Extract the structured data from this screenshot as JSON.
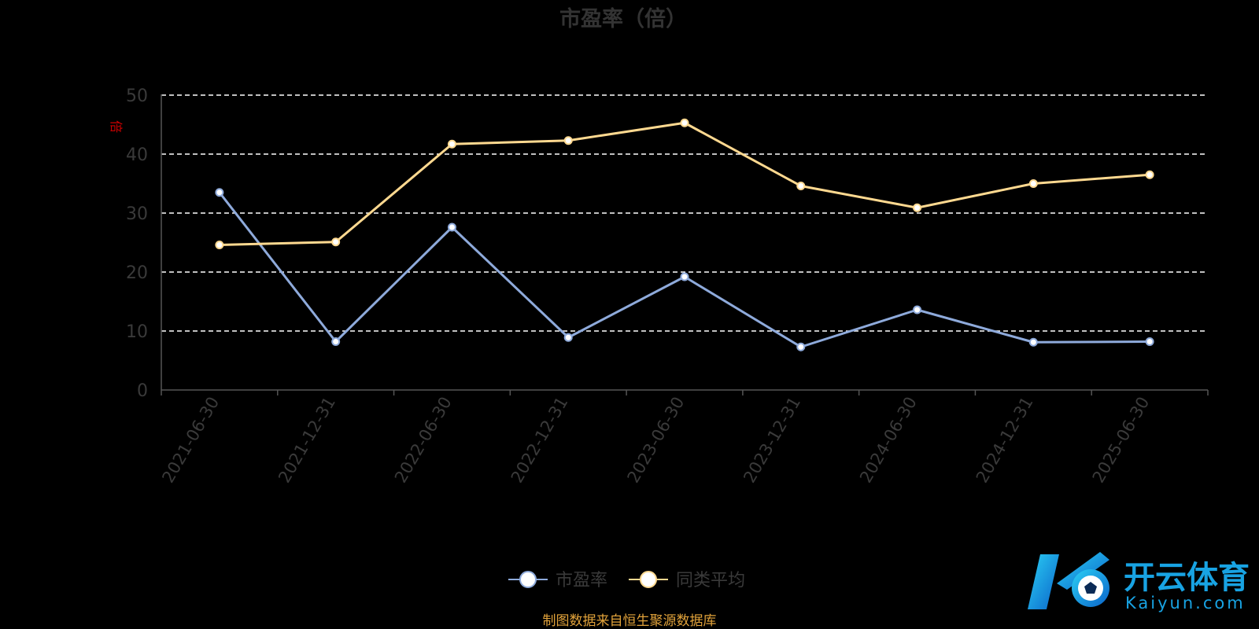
{
  "chart_data": {
    "type": "line",
    "title": "市盈率（倍）",
    "ylabel": "倍",
    "ylim": [
      0,
      50
    ],
    "yticks": [
      0,
      10,
      20,
      30,
      40,
      50
    ],
    "grid": true,
    "legend_position": "bottom-center",
    "categories": [
      "2021-06-30",
      "2021-12-31",
      "2022-06-30",
      "2022-12-31",
      "2023-06-30",
      "2023-12-31",
      "2024-06-30",
      "2024-12-31",
      "2025-06-30"
    ],
    "series": [
      {
        "name": "市盈率",
        "color": "#8eaadb",
        "values": [
          33.5,
          8.2,
          27.6,
          8.9,
          19.2,
          7.3,
          13.6,
          8.1,
          8.2
        ]
      },
      {
        "name": "同类平均",
        "color": "#ffd990",
        "values": [
          24.6,
          25.1,
          41.7,
          42.3,
          45.3,
          34.6,
          30.9,
          35.0,
          36.5
        ]
      }
    ]
  },
  "source_note": "制图数据来自恒生聚源数据库",
  "watermark": {
    "name_cn": "开云体育",
    "name_en": "Kaiyun.com"
  },
  "colors": {
    "background": "#000000",
    "grid": "#ffffff",
    "axis": "#555555",
    "text": "#3a3a3a"
  }
}
